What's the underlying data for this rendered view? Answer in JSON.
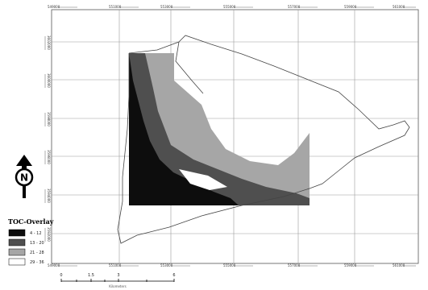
{
  "map": {
    "x_ticks": [
      "549000",
      "551000",
      "553000",
      "555000",
      "557000",
      "559000",
      "561000",
      "563000"
    ],
    "y_ticks": [
      "3602000",
      "3600000",
      "3598000",
      "3596000",
      "3594000",
      "3592000"
    ]
  },
  "legend": {
    "title": "TOC-Overlay",
    "classes": [
      {
        "label": "4 - 12",
        "color": "#0d0d0d"
      },
      {
        "label": "13 - 20",
        "color": "#4f4f4f"
      },
      {
        "label": "21 - 28",
        "color": "#a6a6a6"
      },
      {
        "label": "29 - 36",
        "color": "#ffffff"
      }
    ]
  },
  "scale_bar": {
    "ticks": [
      "0",
      "1.5",
      "3",
      "6"
    ],
    "unit": "Kilometers"
  },
  "north_arrow": {
    "letter": "N",
    "icon": "north-arrow-icon"
  }
}
